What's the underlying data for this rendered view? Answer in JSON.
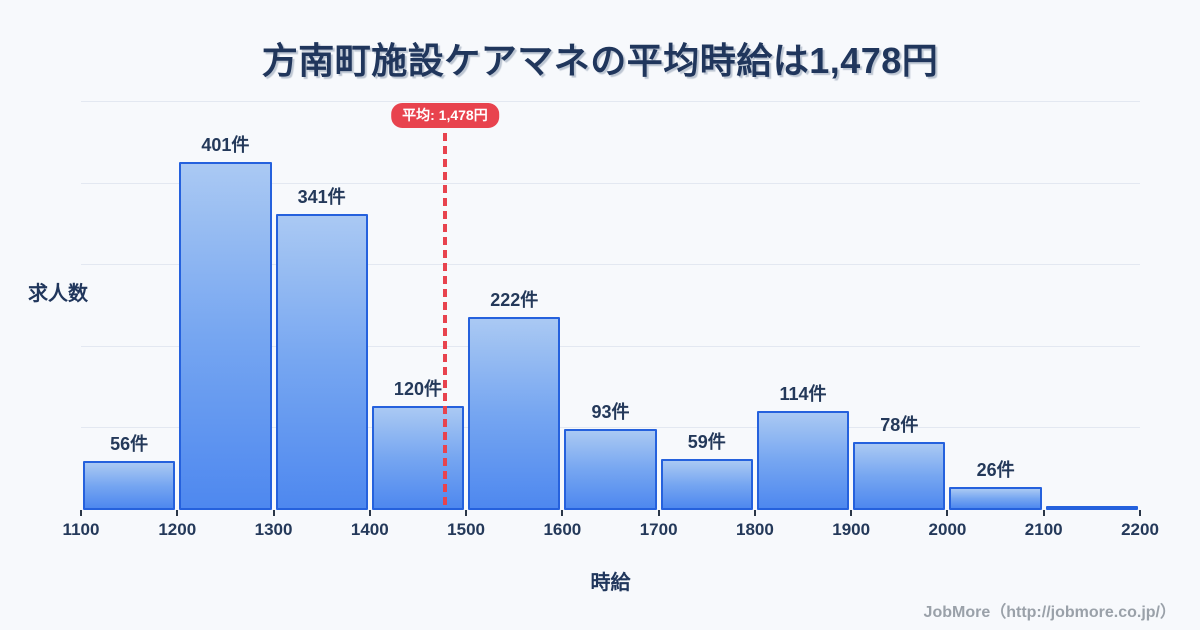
{
  "title": "方南町施設ケアマネの平均時給は1,478円",
  "y_axis_label": "求人数",
  "x_axis_label": "時給",
  "footer": "JobMore（http://jobmore.co.jp/）",
  "colors": {
    "background": "#f7f9fc",
    "title_text": "#20365c",
    "bar_border": "#2561dd",
    "bar_gradient_top": "#aac9f3",
    "bar_gradient_bottom": "#4e88ef",
    "gridline": "#e3e8f1",
    "average_red": "#e8434e",
    "label_text": "#24395a",
    "footer_text": "#9aa1a9"
  },
  "chart_data": {
    "type": "bar",
    "subtype": "histogram",
    "title": "方南町施設ケアマネの平均時給は1,478円",
    "xlabel": "時給",
    "ylabel": "求人数",
    "x_range": [
      1100,
      2200
    ],
    "x_ticks": [
      1100,
      1200,
      1300,
      1400,
      1500,
      1600,
      1700,
      1800,
      1900,
      2000,
      2100,
      2200
    ],
    "bin_width": 100,
    "grid": "horizontal",
    "legend": "none",
    "bins": [
      {
        "range": [
          1100,
          1200
        ],
        "count": 56,
        "label": "56件"
      },
      {
        "range": [
          1200,
          1300
        ],
        "count": 401,
        "label": "401件"
      },
      {
        "range": [
          1300,
          1400
        ],
        "count": 341,
        "label": "341件"
      },
      {
        "range": [
          1400,
          1500
        ],
        "count": 120,
        "label": "120件"
      },
      {
        "range": [
          1500,
          1600
        ],
        "count": 222,
        "label": "222件"
      },
      {
        "range": [
          1600,
          1700
        ],
        "count": 93,
        "label": "93件"
      },
      {
        "range": [
          1700,
          1800
        ],
        "count": 59,
        "label": "59件"
      },
      {
        "range": [
          1800,
          1900
        ],
        "count": 114,
        "label": "114件"
      },
      {
        "range": [
          1900,
          2000
        ],
        "count": 78,
        "label": "78件"
      },
      {
        "range": [
          2000,
          2100
        ],
        "count": 26,
        "label": "26件"
      },
      {
        "range": [
          2100,
          2200
        ],
        "count": 3,
        "label": ""
      }
    ],
    "average": {
      "value": 1478,
      "label": "平均: 1,478円"
    }
  }
}
